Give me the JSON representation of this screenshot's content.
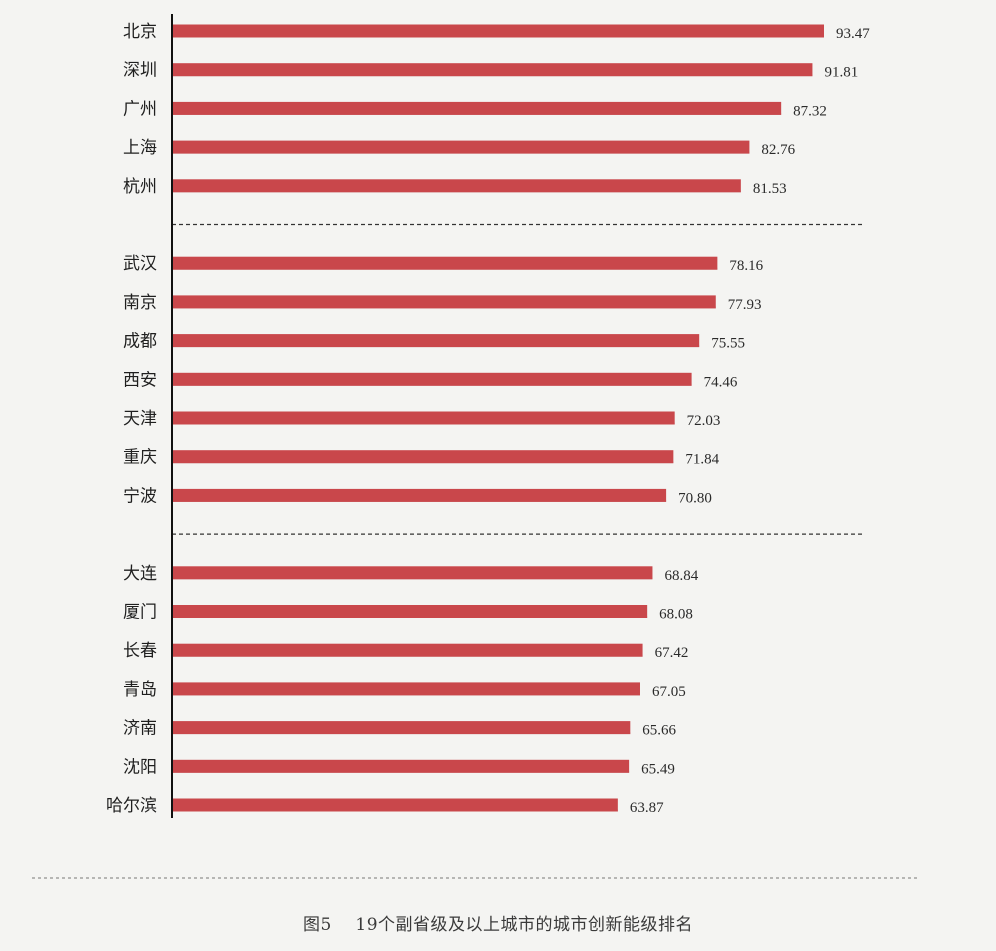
{
  "caption": {
    "figure_number": "图5",
    "title": "19个副省级及以上城市的城市创新能级排名"
  },
  "colors": {
    "bar": "#c9474b",
    "background": "#f4f4f2"
  },
  "chart_data": {
    "type": "bar",
    "orientation": "horizontal",
    "title": "",
    "xlabel": "",
    "ylabel": "",
    "xlim": [
      0,
      100
    ],
    "grid": false,
    "legend": "none",
    "categories": [
      "北京",
      "深圳",
      "广州",
      "上海",
      "杭州",
      "武汉",
      "南京",
      "成都",
      "西安",
      "天津",
      "重庆",
      "宁波",
      "大连",
      "厦门",
      "长春",
      "青岛",
      "济南",
      "沈阳",
      "哈尔滨"
    ],
    "values": [
      93.47,
      91.81,
      87.32,
      82.76,
      81.53,
      78.16,
      77.93,
      75.55,
      74.46,
      72.03,
      71.84,
      70.8,
      68.84,
      68.08,
      67.42,
      67.05,
      65.66,
      65.49,
      63.87
    ],
    "value_labels": [
      "93.47",
      "91.81",
      "87.32",
      "82.76",
      "81.53",
      "78.16",
      "77.93",
      "75.55",
      "74.46",
      "72.03",
      "71.84",
      "70.80",
      "68.84",
      "68.08",
      "67.42",
      "67.05",
      "65.66",
      "65.49",
      "63.87"
    ],
    "groups": [
      {
        "start": 0,
        "end": 4
      },
      {
        "start": 5,
        "end": 11
      },
      {
        "start": 12,
        "end": 18
      }
    ]
  }
}
